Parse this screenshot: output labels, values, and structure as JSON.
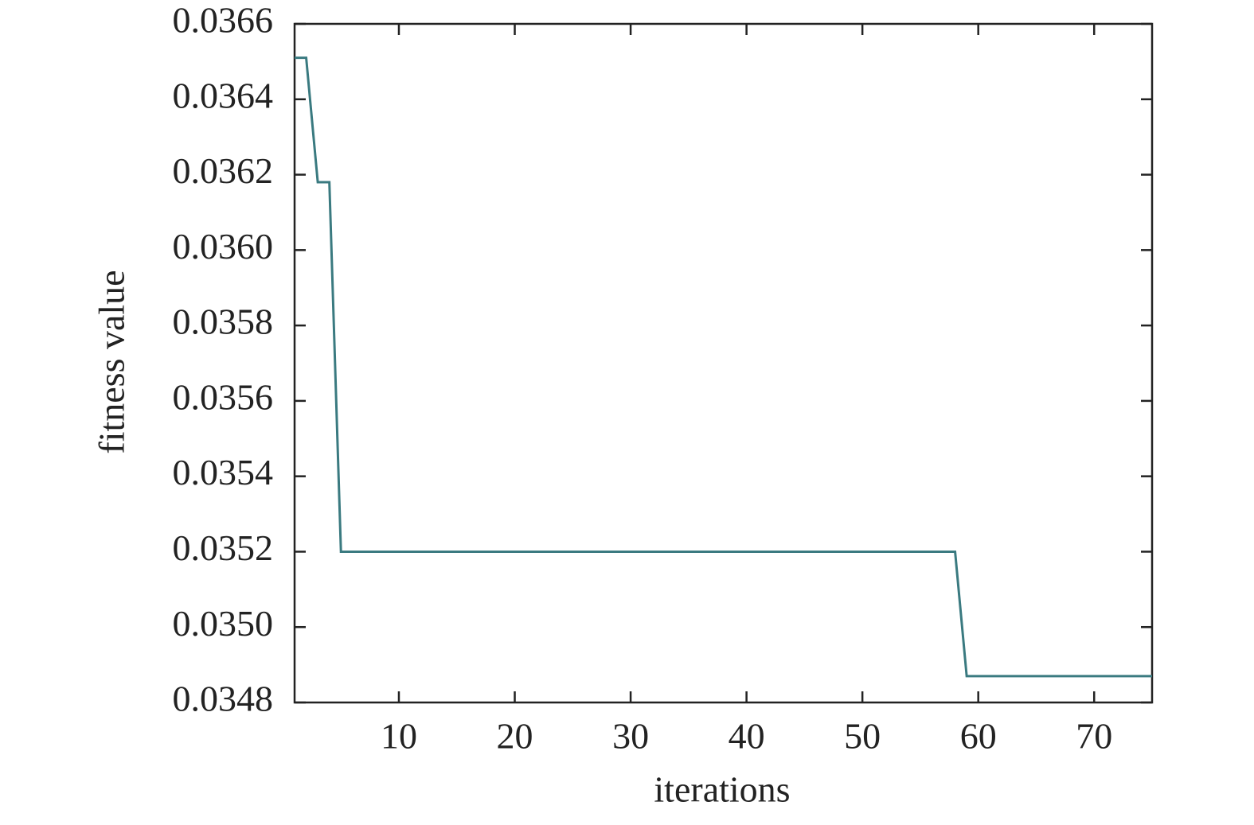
{
  "chart_data": {
    "type": "line",
    "x_label": "iterations",
    "y_label": "fitness value",
    "x": [
      1,
      2,
      3,
      4,
      5,
      58,
      59,
      75
    ],
    "series": [
      {
        "color": "#3a7a80",
        "values": [
          0.03651,
          0.03651,
          0.03618,
          0.03618,
          0.0352,
          0.0352,
          0.03487,
          0.03487
        ]
      }
    ],
    "xlim": [
      1,
      75
    ],
    "xticks": [
      10,
      20,
      30,
      40,
      50,
      60,
      70
    ],
    "ylim": [
      0.0348,
      0.0366
    ],
    "yticks": [
      0.0348,
      {
        "value": 0.035,
        "label": "0.0350"
      },
      0.0352,
      0.0354,
      0.0356,
      0.0358,
      {
        "value": 0.036,
        "label": "0.0360"
      },
      0.0362,
      0.0364,
      0.0366
    ],
    "grid": false
  }
}
